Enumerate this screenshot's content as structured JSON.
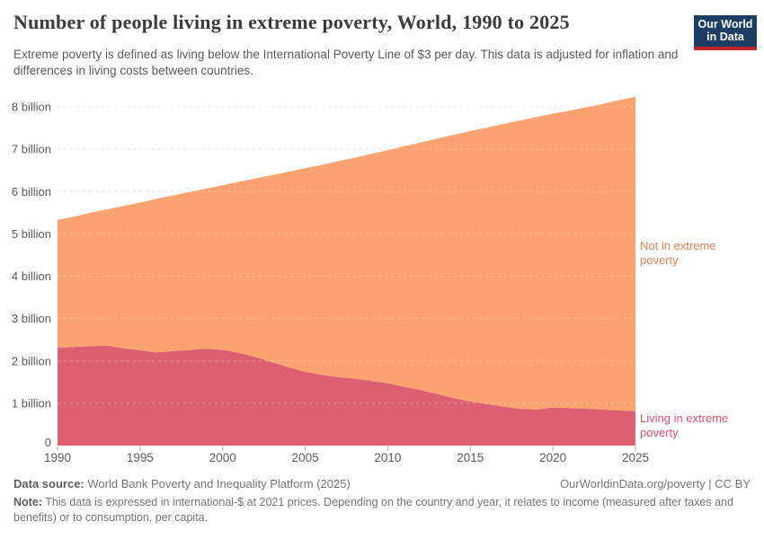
{
  "header": {
    "title": "Number of people living in extreme poverty, World, 1990 to 2025",
    "subtitle": "Extreme poverty is defined as living below the International Poverty Line of $3 per day. This data is adjusted for inflation and differences in living costs between countries.",
    "logo": {
      "line1": "Our World",
      "line2": "in Data",
      "bg": "#1d3d63",
      "accent": "#c0282d"
    }
  },
  "chart_data": {
    "type": "area",
    "stacked": true,
    "title": "Number of people living in extreme poverty, World, 1990 to 2025",
    "unit": "billion people",
    "grid": "dashed",
    "legend_position": "right-of-plot",
    "ylim": [
      0,
      8.5
    ],
    "x": [
      1990,
      1991,
      1992,
      1993,
      1994,
      1995,
      1996,
      1997,
      1998,
      1999,
      2000,
      2001,
      2002,
      2003,
      2004,
      2005,
      2006,
      2007,
      2008,
      2009,
      2010,
      2011,
      2012,
      2013,
      2014,
      2015,
      2016,
      2017,
      2018,
      2019,
      2020,
      2021,
      2022,
      2023,
      2024,
      2025
    ],
    "x_ticks": [
      1990,
      1995,
      2000,
      2005,
      2010,
      2015,
      2020,
      2025
    ],
    "y_ticks": [
      {
        "value": 0,
        "label": "0"
      },
      {
        "value": 1,
        "label": "1 billion"
      },
      {
        "value": 2,
        "label": "2 billion"
      },
      {
        "value": 3,
        "label": "3 billion"
      },
      {
        "value": 4,
        "label": "4 billion"
      },
      {
        "value": 5,
        "label": "5 billion"
      },
      {
        "value": 6,
        "label": "6 billion"
      },
      {
        "value": 7,
        "label": "7 billion"
      },
      {
        "value": 8,
        "label": "8 billion"
      }
    ],
    "series": [
      {
        "name": "Living in extreme poverty",
        "color": "#dd6072",
        "label_color": "#e0506c",
        "values": [
          2.31,
          2.33,
          2.35,
          2.36,
          2.3,
          2.25,
          2.2,
          2.23,
          2.26,
          2.29,
          2.26,
          2.19,
          2.09,
          1.97,
          1.85,
          1.74,
          1.67,
          1.62,
          1.58,
          1.53,
          1.47,
          1.39,
          1.31,
          1.22,
          1.12,
          1.04,
          0.98,
          0.92,
          0.87,
          0.85,
          0.9,
          0.89,
          0.87,
          0.85,
          0.83,
          0.81
        ]
      },
      {
        "name": "Not in extreme poverty",
        "color": "#fba271",
        "label_color": "#e0815c",
        "values": [
          3.02,
          3.08,
          3.15,
          3.22,
          3.36,
          3.49,
          3.63,
          3.68,
          3.73,
          3.78,
          3.89,
          4.04,
          4.22,
          4.42,
          4.62,
          4.81,
          4.96,
          5.1,
          5.22,
          5.36,
          5.51,
          5.68,
          5.85,
          6.03,
          6.22,
          6.39,
          6.53,
          6.68,
          6.81,
          6.91,
          6.94,
          7.02,
          7.12,
          7.22,
          7.33,
          7.43
        ]
      }
    ]
  },
  "footer": {
    "data_source_label": "Data source:",
    "data_source": "World Bank Poverty and Inequality Platform (2025)",
    "credit": "OurWorldinData.org/poverty | CC BY",
    "note_label": "Note:",
    "note": "This data is expressed in international-$ at 2021 prices. Depending on the country and year, it relates to income (measured after taxes and benefits) or to consumption, per capita."
  }
}
